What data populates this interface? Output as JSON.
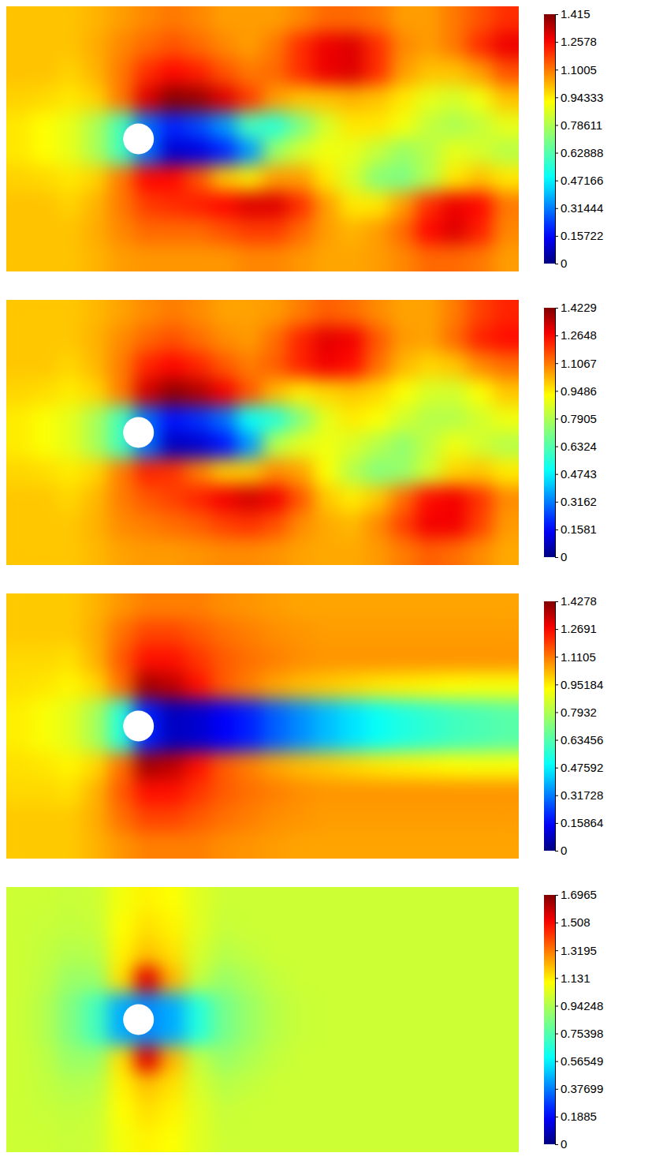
{
  "chart_data": [
    {
      "type": "heatmap",
      "cells": [
        [
          1.0,
          1.0,
          1.0,
          1.02,
          1.05,
          1.08,
          1.1,
          1.08,
          1.05,
          1.05,
          1.05,
          1.08,
          1.12,
          1.12,
          1.1,
          1.05,
          1.05,
          1.1,
          1.15,
          1.2
        ],
        [
          1.0,
          1.0,
          1.0,
          1.03,
          1.08,
          1.12,
          1.15,
          1.12,
          1.08,
          1.05,
          1.1,
          1.2,
          1.28,
          1.3,
          1.2,
          1.08,
          1.05,
          1.1,
          1.2,
          1.28
        ],
        [
          1.0,
          1.0,
          0.98,
          1.02,
          1.1,
          1.2,
          1.25,
          1.22,
          1.15,
          1.1,
          1.12,
          1.2,
          1.28,
          1.3,
          1.2,
          1.05,
          1.0,
          1.0,
          1.05,
          1.15
        ],
        [
          0.98,
          0.97,
          0.95,
          0.98,
          1.1,
          1.3,
          1.4,
          1.38,
          1.3,
          1.18,
          1.05,
          1.0,
          1.0,
          1.02,
          1.0,
          0.95,
          0.88,
          0.85,
          0.9,
          1.0
        ],
        [
          0.95,
          0.92,
          0.88,
          0.78,
          0.6,
          0.3,
          0.2,
          0.25,
          0.35,
          0.6,
          0.55,
          0.7,
          0.85,
          0.95,
          0.95,
          0.9,
          0.82,
          0.78,
          0.82,
          0.88
        ],
        [
          0.95,
          0.92,
          0.88,
          0.78,
          0.6,
          0.3,
          0.1,
          0.12,
          0.2,
          0.35,
          0.75,
          0.85,
          0.9,
          0.88,
          0.82,
          0.75,
          0.8,
          0.88,
          0.85,
          0.8
        ],
        [
          0.98,
          0.97,
          0.95,
          0.98,
          1.1,
          1.25,
          1.25,
          1.15,
          1.0,
          0.95,
          1.05,
          1.05,
          0.95,
          0.85,
          0.72,
          0.7,
          0.8,
          0.95,
          1.0,
          0.95
        ],
        [
          1.0,
          1.0,
          0.98,
          1.02,
          1.1,
          1.18,
          1.2,
          1.22,
          1.25,
          1.3,
          1.3,
          1.2,
          1.05,
          0.95,
          0.95,
          1.05,
          1.2,
          1.28,
          1.25,
          1.1
        ],
        [
          1.0,
          1.0,
          1.0,
          1.03,
          1.08,
          1.12,
          1.12,
          1.12,
          1.15,
          1.18,
          1.18,
          1.12,
          1.05,
          1.02,
          1.05,
          1.12,
          1.25,
          1.3,
          1.22,
          1.08
        ],
        [
          1.0,
          1.0,
          1.0,
          1.02,
          1.05,
          1.06,
          1.06,
          1.06,
          1.06,
          1.08,
          1.08,
          1.06,
          1.04,
          1.04,
          1.05,
          1.08,
          1.12,
          1.12,
          1.1,
          1.05
        ]
      ],
      "colorbar": {
        "range": [
          0,
          1.415
        ],
        "ticks": [
          0,
          0.15722,
          0.31444,
          0.47166,
          0.62888,
          0.78611,
          0.94333,
          1.1005,
          1.2578,
          1.415
        ]
      }
    },
    {
      "type": "heatmap",
      "cells": [
        [
          1.0,
          1.0,
          1.0,
          1.02,
          1.05,
          1.08,
          1.1,
          1.08,
          1.05,
          1.05,
          1.06,
          1.1,
          1.14,
          1.12,
          1.08,
          1.05,
          1.05,
          1.1,
          1.18,
          1.22
        ],
        [
          1.0,
          1.0,
          1.0,
          1.03,
          1.08,
          1.13,
          1.16,
          1.12,
          1.08,
          1.06,
          1.12,
          1.22,
          1.3,
          1.28,
          1.15,
          1.06,
          1.05,
          1.12,
          1.22,
          1.25
        ],
        [
          1.0,
          1.0,
          0.98,
          1.02,
          1.1,
          1.22,
          1.26,
          1.22,
          1.15,
          1.1,
          1.14,
          1.22,
          1.28,
          1.25,
          1.12,
          1.02,
          0.98,
          1.0,
          1.08,
          1.12
        ],
        [
          0.98,
          0.97,
          0.95,
          0.98,
          1.1,
          1.32,
          1.4,
          1.36,
          1.28,
          1.15,
          1.02,
          0.95,
          0.98,
          1.0,
          0.98,
          0.92,
          0.86,
          0.85,
          0.92,
          1.0
        ],
        [
          0.95,
          0.92,
          0.88,
          0.78,
          0.6,
          0.3,
          0.18,
          0.22,
          0.3,
          0.5,
          0.55,
          0.72,
          0.88,
          0.95,
          0.92,
          0.85,
          0.8,
          0.8,
          0.85,
          0.9
        ],
        [
          0.95,
          0.92,
          0.88,
          0.78,
          0.6,
          0.3,
          0.08,
          0.1,
          0.18,
          0.35,
          0.8,
          0.88,
          0.9,
          0.86,
          0.8,
          0.74,
          0.82,
          0.9,
          0.85,
          0.8
        ],
        [
          0.98,
          0.97,
          0.95,
          0.98,
          1.1,
          1.22,
          1.2,
          1.1,
          1.0,
          1.0,
          1.08,
          1.05,
          0.92,
          0.8,
          0.72,
          0.75,
          0.85,
          0.98,
          1.0,
          0.95
        ],
        [
          1.0,
          1.0,
          0.98,
          1.02,
          1.1,
          1.15,
          1.18,
          1.22,
          1.28,
          1.32,
          1.28,
          1.15,
          1.0,
          0.95,
          1.0,
          1.12,
          1.25,
          1.28,
          1.2,
          1.08
        ],
        [
          1.0,
          1.0,
          1.0,
          1.03,
          1.08,
          1.1,
          1.12,
          1.14,
          1.18,
          1.2,
          1.16,
          1.08,
          1.04,
          1.02,
          1.08,
          1.18,
          1.28,
          1.28,
          1.18,
          1.06
        ],
        [
          1.0,
          1.0,
          1.0,
          1.02,
          1.05,
          1.06,
          1.06,
          1.07,
          1.08,
          1.08,
          1.07,
          1.05,
          1.04,
          1.04,
          1.06,
          1.1,
          1.14,
          1.12,
          1.08,
          1.04
        ]
      ],
      "colorbar": {
        "range": [
          0,
          1.4229
        ],
        "ticks": [
          0,
          0.1581,
          0.3162,
          0.4743,
          0.6324,
          0.7905,
          0.9486,
          1.1067,
          1.2648,
          1.4229
        ]
      }
    },
    {
      "type": "heatmap",
      "cells": [
        [
          1.0,
          1.0,
          1.0,
          1.03,
          1.07,
          1.1,
          1.1,
          1.1,
          1.08,
          1.07,
          1.06,
          1.05,
          1.05,
          1.05,
          1.05,
          1.05,
          1.05,
          1.05,
          1.05,
          1.05
        ],
        [
          1.0,
          1.0,
          1.0,
          1.04,
          1.12,
          1.18,
          1.18,
          1.15,
          1.12,
          1.1,
          1.08,
          1.07,
          1.06,
          1.06,
          1.06,
          1.06,
          1.06,
          1.06,
          1.06,
          1.06
        ],
        [
          0.98,
          0.98,
          0.97,
          1.03,
          1.15,
          1.25,
          1.25,
          1.2,
          1.15,
          1.12,
          1.1,
          1.08,
          1.07,
          1.07,
          1.07,
          1.07,
          1.07,
          1.07,
          1.07,
          1.07
        ],
        [
          0.97,
          0.96,
          0.94,
          0.98,
          1.12,
          1.38,
          1.35,
          1.25,
          1.15,
          1.1,
          1.05,
          1.02,
          1.0,
          0.98,
          0.96,
          0.95,
          0.94,
          0.93,
          0.92,
          0.92
        ],
        [
          0.95,
          0.92,
          0.88,
          0.78,
          0.55,
          0.2,
          0.08,
          0.1,
          0.15,
          0.2,
          0.28,
          0.34,
          0.4,
          0.45,
          0.5,
          0.54,
          0.57,
          0.6,
          0.62,
          0.64
        ],
        [
          0.95,
          0.92,
          0.88,
          0.78,
          0.55,
          0.2,
          0.08,
          0.1,
          0.15,
          0.2,
          0.28,
          0.34,
          0.4,
          0.45,
          0.5,
          0.54,
          0.57,
          0.6,
          0.62,
          0.64
        ],
        [
          0.97,
          0.96,
          0.94,
          0.98,
          1.12,
          1.38,
          1.35,
          1.25,
          1.15,
          1.1,
          1.05,
          1.02,
          1.0,
          0.98,
          0.96,
          0.95,
          0.94,
          0.93,
          0.92,
          0.92
        ],
        [
          0.98,
          0.98,
          0.97,
          1.03,
          1.15,
          1.25,
          1.25,
          1.2,
          1.15,
          1.12,
          1.1,
          1.08,
          1.07,
          1.07,
          1.07,
          1.07,
          1.07,
          1.07,
          1.07,
          1.07
        ],
        [
          1.0,
          1.0,
          1.0,
          1.04,
          1.12,
          1.18,
          1.18,
          1.15,
          1.12,
          1.1,
          1.08,
          1.07,
          1.06,
          1.06,
          1.06,
          1.06,
          1.06,
          1.06,
          1.06,
          1.06
        ],
        [
          1.0,
          1.0,
          1.0,
          1.03,
          1.07,
          1.1,
          1.1,
          1.1,
          1.08,
          1.07,
          1.06,
          1.05,
          1.05,
          1.05,
          1.05,
          1.05,
          1.05,
          1.05,
          1.05,
          1.05
        ]
      ],
      "colorbar": {
        "range": [
          0,
          1.4278
        ],
        "ticks": [
          0,
          0.15864,
          0.31728,
          0.47592,
          0.63456,
          0.7932,
          0.95184,
          1.1105,
          1.2691,
          1.4278
        ]
      }
    },
    {
      "type": "heatmap",
      "cells": [
        [
          1.0,
          1.0,
          0.99,
          1.0,
          1.08,
          1.12,
          1.1,
          1.04,
          1.0,
          1.0,
          1.0,
          1.0,
          1.0,
          1.0,
          1.0,
          1.0,
          1.0,
          1.0,
          1.0,
          1.0
        ],
        [
          1.0,
          0.99,
          0.98,
          0.99,
          1.1,
          1.15,
          1.12,
          1.04,
          0.99,
          1.0,
          1.0,
          1.0,
          1.0,
          1.0,
          1.0,
          1.0,
          1.0,
          1.0,
          1.0,
          1.0
        ],
        [
          1.0,
          0.98,
          0.95,
          0.96,
          1.12,
          1.2,
          1.15,
          1.02,
          0.96,
          0.98,
          1.0,
          1.0,
          1.0,
          1.0,
          1.0,
          1.0,
          1.0,
          1.0,
          1.0,
          1.0
        ],
        [
          1.0,
          0.97,
          0.9,
          0.9,
          1.15,
          1.55,
          1.22,
          0.98,
          0.9,
          0.94,
          0.98,
          1.0,
          1.0,
          1.0,
          1.0,
          1.0,
          1.0,
          1.0,
          1.0,
          1.0
        ],
        [
          1.0,
          0.95,
          0.85,
          0.72,
          0.45,
          0.4,
          0.45,
          0.65,
          0.82,
          0.9,
          0.96,
          0.99,
          1.0,
          1.0,
          1.0,
          1.0,
          1.0,
          1.0,
          1.0,
          1.0
        ],
        [
          1.0,
          0.95,
          0.85,
          0.72,
          0.45,
          0.4,
          0.45,
          0.65,
          0.82,
          0.9,
          0.96,
          0.99,
          1.0,
          1.0,
          1.0,
          1.0,
          1.0,
          1.0,
          1.0,
          1.0
        ],
        [
          1.0,
          0.97,
          0.9,
          0.9,
          1.15,
          1.55,
          1.22,
          0.98,
          0.9,
          0.94,
          0.98,
          1.0,
          1.0,
          1.0,
          1.0,
          1.0,
          1.0,
          1.0,
          1.0,
          1.0
        ],
        [
          1.0,
          0.98,
          0.95,
          0.96,
          1.12,
          1.2,
          1.15,
          1.02,
          0.96,
          0.98,
          1.0,
          1.0,
          1.0,
          1.0,
          1.0,
          1.0,
          1.0,
          1.0,
          1.0,
          1.0
        ],
        [
          1.0,
          0.99,
          0.98,
          0.99,
          1.1,
          1.15,
          1.12,
          1.04,
          0.99,
          1.0,
          1.0,
          1.0,
          1.0,
          1.0,
          1.0,
          1.0,
          1.0,
          1.0,
          1.0,
          1.0
        ],
        [
          1.0,
          1.0,
          0.99,
          1.0,
          1.08,
          1.12,
          1.1,
          1.04,
          1.0,
          1.0,
          1.0,
          1.0,
          1.0,
          1.0,
          1.0,
          1.0,
          1.0,
          1.0,
          1.0,
          1.0
        ]
      ],
      "colorbar": {
        "range": [
          0,
          1.6965
        ],
        "ticks": [
          0,
          0.1885,
          0.37699,
          0.56549,
          0.75398,
          0.94248,
          1.131,
          1.3195,
          1.508,
          1.6965
        ]
      }
    }
  ]
}
